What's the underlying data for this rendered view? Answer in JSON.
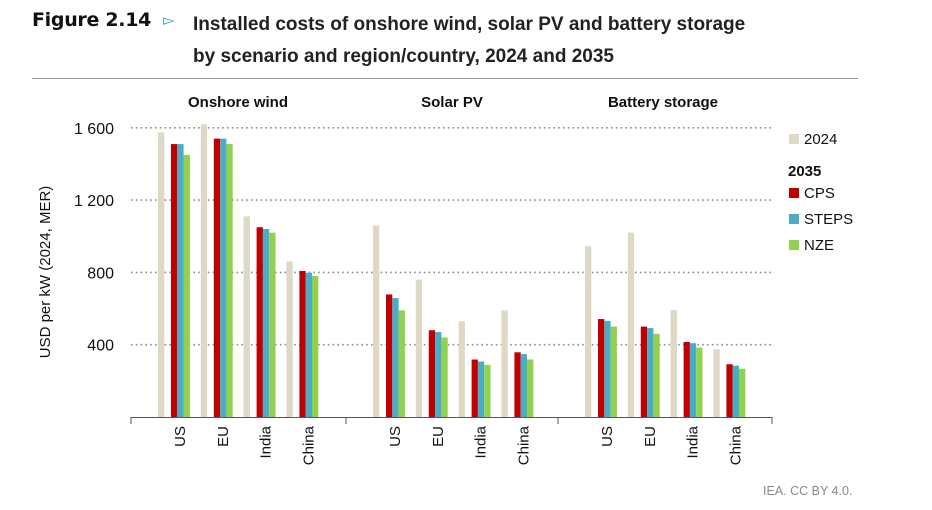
{
  "figure": {
    "label": "Figure 2.14",
    "arrow": "▻",
    "title_line1": "Installed costs of onshore wind, solar PV and battery storage",
    "title_line2": "by scenario and region/country, 2024 and 2035",
    "source": "IEA. CC BY 4.0."
  },
  "colors": {
    "2024": "#ddd9c4",
    "CPS": "#c00000",
    "STEPS": "#4bacc6",
    "NZE": "#92d050",
    "arrow": "#3b9fc4"
  },
  "chart_data": {
    "type": "bar",
    "title": "Installed costs of onshore wind, solar PV and battery storage by scenario and region/country, 2024 and 2035",
    "xlabel": "",
    "ylabel": "USD per kW (2024, MER)",
    "ylim": [
      0,
      1700
    ],
    "yticks": [
      400,
      800,
      1200,
      1600
    ],
    "ytick_labels": [
      "400",
      "800",
      "1 200",
      "1 600"
    ],
    "grid": "horizontal dotted",
    "legend_position": "right",
    "legend": {
      "items": [
        {
          "key": "2024",
          "label": "2024"
        },
        {
          "heading": "2035"
        },
        {
          "key": "CPS",
          "label": "CPS"
        },
        {
          "key": "STEPS",
          "label": "STEPS"
        },
        {
          "key": "NZE",
          "label": "NZE"
        }
      ]
    },
    "series_names": [
      "2024",
      "CPS",
      "STEPS",
      "NZE"
    ],
    "groups": [
      {
        "name": "Onshore wind",
        "categories": [
          "US",
          "EU",
          "India",
          "China"
        ],
        "series": [
          {
            "name": "2024",
            "values": [
              1575,
              1620,
              1110,
              860
            ]
          },
          {
            "name": "CPS",
            "values": [
              1510,
              1540,
              1050,
              808
            ]
          },
          {
            "name": "STEPS",
            "values": [
              1510,
              1540,
              1040,
              798
            ]
          },
          {
            "name": "NZE",
            "values": [
              1450,
              1510,
              1020,
              780
            ]
          }
        ]
      },
      {
        "name": "Solar PV",
        "categories": [
          "US",
          "EU",
          "India",
          "China"
        ],
        "series": [
          {
            "name": "2024",
            "values": [
              1060,
              760,
              530,
              590
            ]
          },
          {
            "name": "CPS",
            "values": [
              678,
              480,
              318,
              358
            ]
          },
          {
            "name": "STEPS",
            "values": [
              658,
              470,
              307,
              348
            ]
          },
          {
            "name": "NZE",
            "values": [
              590,
              440,
              288,
              318
            ]
          }
        ]
      },
      {
        "name": "Battery storage",
        "categories": [
          "US",
          "EU",
          "India",
          "China"
        ],
        "series": [
          {
            "name": "2024",
            "values": [
              945,
              1020,
              592,
              375
            ]
          },
          {
            "name": "CPS",
            "values": [
              542,
              500,
              415,
              292
            ]
          },
          {
            "name": "STEPS",
            "values": [
              532,
              492,
              408,
              284
            ]
          },
          {
            "name": "NZE",
            "values": [
              500,
              460,
              384,
              267
            ]
          }
        ]
      }
    ]
  }
}
